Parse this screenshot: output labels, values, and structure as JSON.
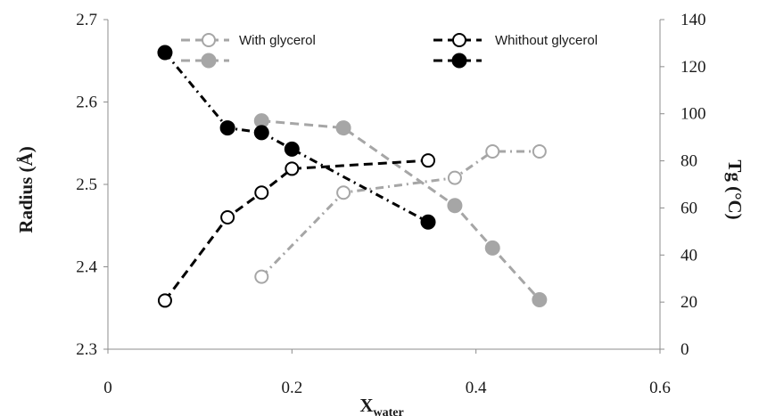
{
  "chart_data": {
    "type": "scatter",
    "xlabel": "X",
    "xlabel_sub": "water",
    "ylabel_left": "Radius (Å)",
    "ylabel_right": "Tg (°C)",
    "xlim": [
      0,
      0.6
    ],
    "ylim_left": [
      2.3,
      2.7
    ],
    "ylim_right": [
      0,
      140
    ],
    "x_ticks": [
      "0",
      "0.2",
      "0.4",
      "0.6"
    ],
    "y_left_ticks": [
      "2.3",
      "2.4",
      "2.5",
      "2.6",
      "2.7"
    ],
    "y_right_ticks": [
      "0",
      "20",
      "40",
      "60",
      "80",
      "100",
      "120",
      "140"
    ],
    "grid": false,
    "legend_position": "top",
    "series": [
      {
        "name": "With glycerol",
        "axis": "left",
        "marker": "open-circle",
        "color": "#a6a6a6",
        "line": "dash-dot",
        "points": [
          [
            0.167,
            2.388
          ],
          [
            0.256,
            2.49
          ],
          [
            0.377,
            2.508
          ],
          [
            0.418,
            2.54
          ],
          [
            0.469,
            2.54
          ]
        ]
      },
      {
        "name": "",
        "axis": "right",
        "marker": "filled-circle",
        "color": "#a6a6a6",
        "line": "dashed",
        "points": [
          [
            0.167,
            97
          ],
          [
            0.256,
            94
          ],
          [
            0.377,
            61
          ],
          [
            0.418,
            43
          ],
          [
            0.469,
            21
          ]
        ]
      },
      {
        "name": "Whithout glycerol",
        "axis": "left",
        "marker": "open-circle",
        "color": "#000000",
        "line": "dashed",
        "points": [
          [
            0.062,
            2.359
          ],
          [
            0.13,
            2.46
          ],
          [
            0.167,
            2.49
          ],
          [
            0.2,
            2.519
          ],
          [
            0.348,
            2.529
          ]
        ]
      },
      {
        "name": "",
        "axis": "right",
        "marker": "filled-circle",
        "color": "#000000",
        "line": "dash-dot",
        "points": [
          [
            0.062,
            126
          ],
          [
            0.13,
            94
          ],
          [
            0.167,
            92
          ],
          [
            0.2,
            85
          ],
          [
            0.348,
            54
          ]
        ]
      }
    ]
  }
}
